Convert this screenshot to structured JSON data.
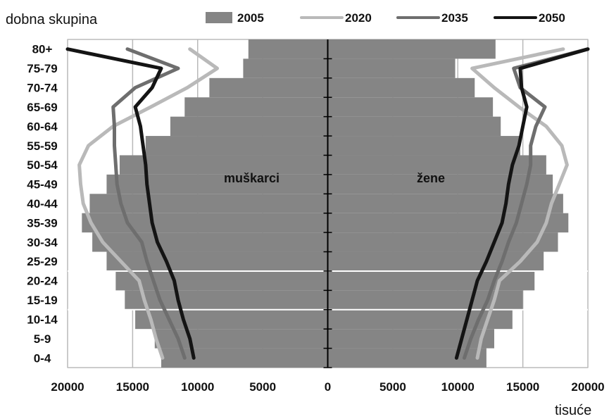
{
  "chart_data": {
    "type": "line",
    "title": "",
    "ylabel": "dobna skupina",
    "xlabel": "tisuće",
    "xlim": [
      -20000,
      20000
    ],
    "x_tick_values": [
      -20000,
      -15000,
      -10000,
      -5000,
      0,
      5000,
      10000,
      15000,
      20000
    ],
    "x_tick_labels": [
      "20000",
      "15000",
      "10000",
      "5000",
      "0",
      "5000",
      "10000",
      "15000",
      "20000"
    ],
    "categories": [
      "0-4",
      "5-9",
      "10-14",
      "15-19",
      "20-24",
      "25-29",
      "30-34",
      "35-39",
      "40-44",
      "45-49",
      "50-54",
      "55-59",
      "60-64",
      "65-69",
      "70-74",
      "75-79",
      "80+"
    ],
    "side_labels": {
      "left": "muškarci",
      "right": "žene"
    },
    "legend_position": "top",
    "grid": true,
    "colors": {
      "bar": "#858585",
      "s2020": "#b9b9b9",
      "s2035": "#6e6e6e",
      "s2050": "#141414"
    },
    "series": [
      {
        "name": "2005",
        "kind": "bar",
        "male": [
          12800,
          13300,
          14800,
          15600,
          16300,
          17000,
          18100,
          18900,
          18300,
          17000,
          16000,
          14000,
          12100,
          11000,
          9100,
          6500,
          6100
        ],
        "female": [
          12200,
          12800,
          14200,
          15000,
          15900,
          16600,
          17700,
          18500,
          18100,
          17300,
          16800,
          14800,
          13300,
          12700,
          11300,
          9800,
          12900
        ]
      },
      {
        "name": "2020",
        "kind": "line",
        "male": [
          12700,
          13200,
          13600,
          14100,
          14500,
          15900,
          17300,
          18200,
          18800,
          19000,
          19100,
          18400,
          16500,
          13600,
          10800,
          8500,
          10600
        ],
        "female": [
          11500,
          11800,
          12300,
          12800,
          13200,
          14800,
          16100,
          16800,
          17200,
          17800,
          18400,
          18000,
          16800,
          14700,
          12800,
          11100,
          18100
        ]
      },
      {
        "name": "2035",
        "kind": "line",
        "male": [
          11000,
          11500,
          12200,
          12900,
          13400,
          13900,
          14300,
          15400,
          15900,
          16200,
          16300,
          16400,
          16400,
          16500,
          14800,
          11500,
          15400
        ],
        "female": [
          10500,
          11000,
          11600,
          12300,
          12800,
          13400,
          13900,
          14500,
          14900,
          15300,
          15600,
          15600,
          16000,
          16700,
          14800,
          14300,
          20000
        ]
      },
      {
        "name": "2050",
        "kind": "line",
        "male": [
          10300,
          10600,
          11100,
          11500,
          11800,
          12400,
          13100,
          13500,
          13700,
          13900,
          14000,
          14200,
          14400,
          14800,
          13500,
          12800,
          20000
        ],
        "female": [
          9900,
          10300,
          10700,
          11100,
          11500,
          12200,
          12800,
          13400,
          13700,
          13900,
          14200,
          14700,
          15000,
          15300,
          14900,
          14800,
          20000
        ]
      }
    ]
  }
}
